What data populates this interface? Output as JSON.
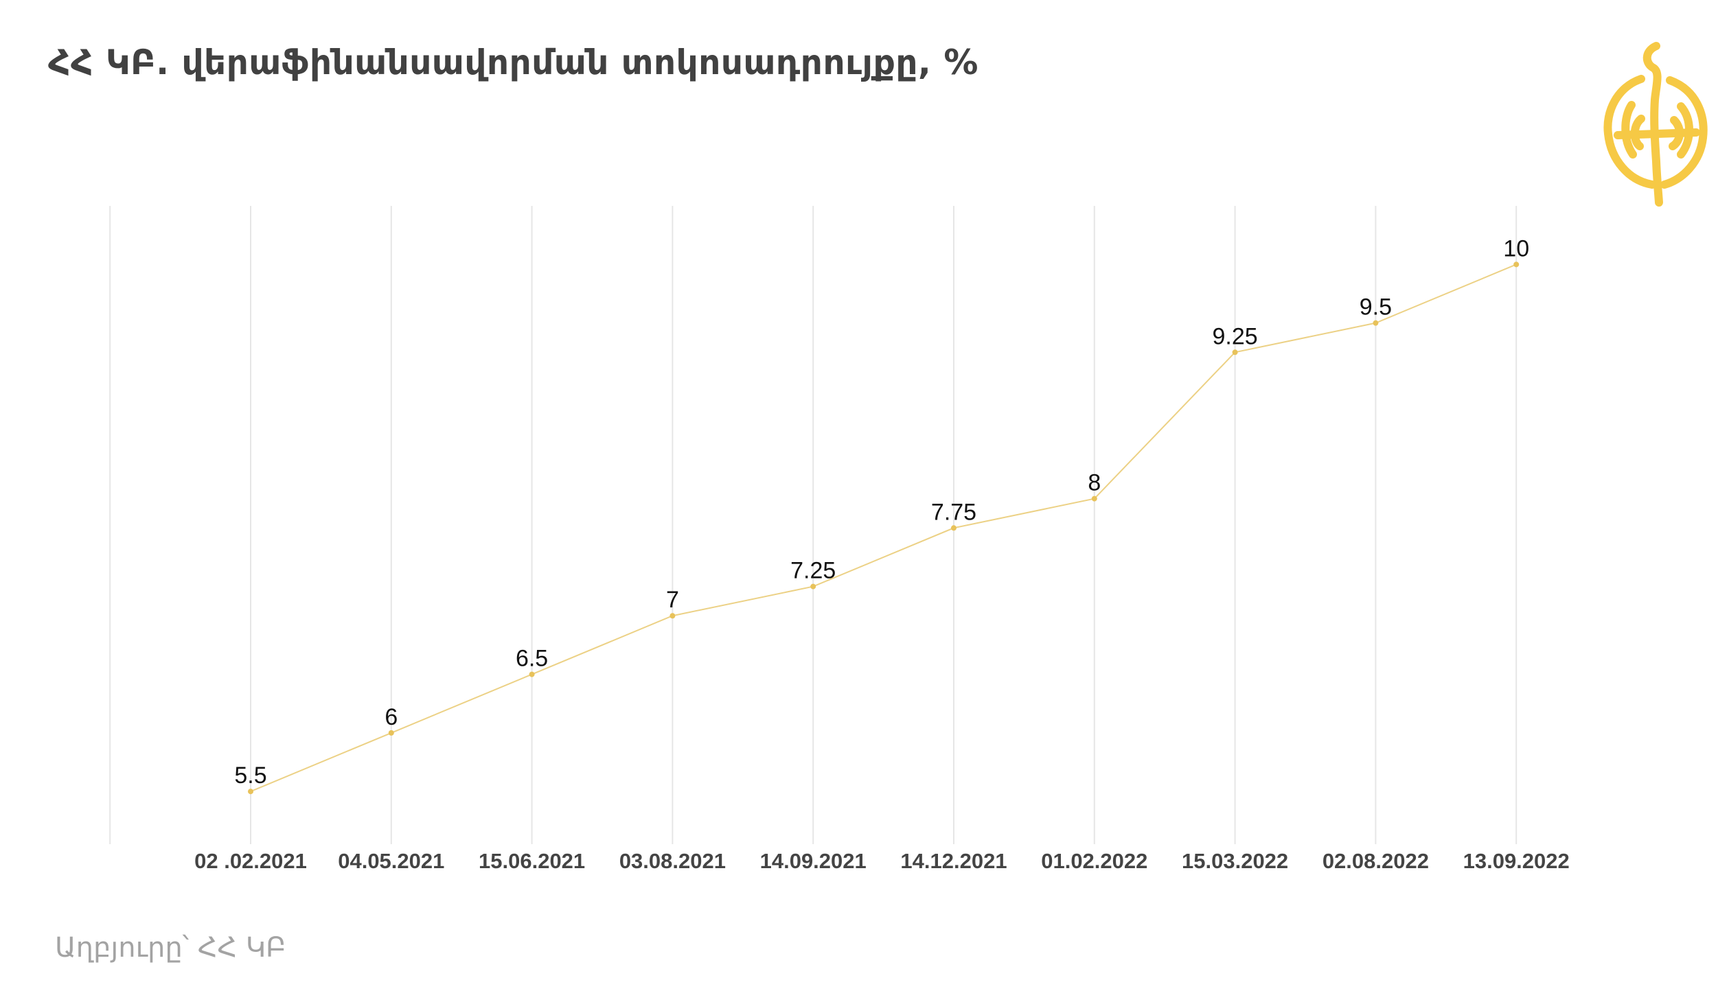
{
  "title": "ՀՀ ԿԲ. վերաֆինանսավորման տոկոսադրույքը, %",
  "source": "Աղբյուրը՝ ՀՀ ԿԲ",
  "colors": {
    "line": "#ecd185",
    "point": "#e8c25a",
    "grid": "#e6e6e6",
    "logo": "#f6c945",
    "title": "#414141"
  },
  "logo_icon": "globe-logo-icon",
  "chart_data": {
    "type": "line",
    "title": "ՀՀ ԿԲ. վերաֆինանսավորման տոկոսադրույքը, %",
    "xlabel": "",
    "ylabel": "",
    "categories": [
      "02 .02.2021",
      "04.05.2021",
      "15.06.2021",
      "03.08.2021",
      "14.09.2021",
      "14.12.2021",
      "01.02.2022",
      "15.03.2022",
      "02.08.2022",
      "13.09.2022"
    ],
    "values": [
      5.5,
      6,
      6.5,
      7,
      7.25,
      7.75,
      8,
      9.25,
      9.5,
      10
    ],
    "value_labels": [
      "5.5",
      "6",
      "6.5",
      "7",
      "7.25",
      "7.75",
      "8",
      "9.25",
      "9.5",
      "10"
    ],
    "ylim": [
      5.05,
      10.5
    ],
    "grid": "vertical",
    "legend": "none"
  }
}
